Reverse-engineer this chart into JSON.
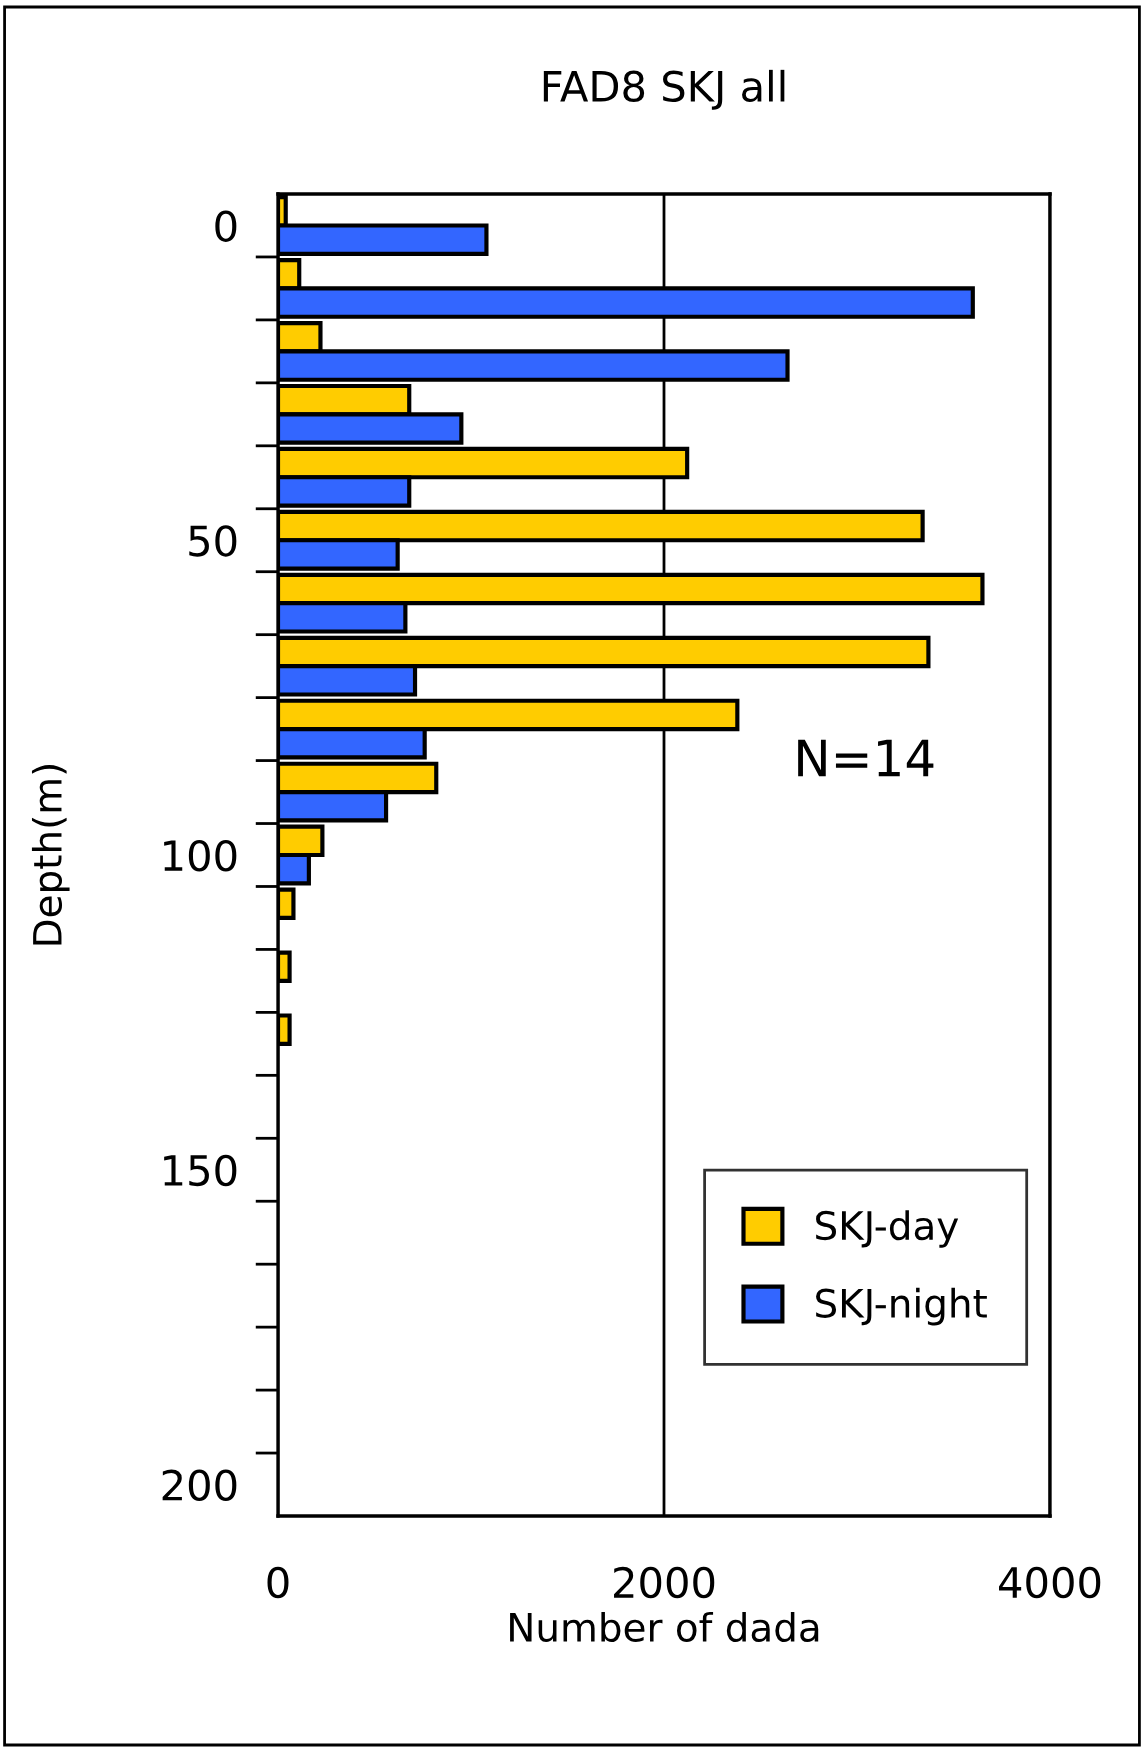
{
  "chart_data": {
    "type": "bar",
    "orientation": "horizontal",
    "title": "FAD8 SKJ all",
    "xlabel": "Number of dada",
    "ylabel": "Depth(m)",
    "categories": [
      "0",
      null,
      null,
      null,
      null,
      "50",
      null,
      null,
      null,
      null,
      "100",
      null,
      null,
      null,
      null,
      "150",
      null,
      null,
      null,
      null,
      "200"
    ],
    "series": [
      {
        "name": "SKJ-day",
        "color": "#ffcc00",
        "values": [
          40,
          110,
          220,
          680,
          2120,
          3340,
          3650,
          3370,
          2380,
          820,
          230,
          80,
          60,
          60,
          null,
          null,
          null,
          null,
          null,
          null,
          null
        ]
      },
      {
        "name": "SKJ-night",
        "color": "#3366ff",
        "values": [
          1080,
          3600,
          2640,
          950,
          680,
          620,
          660,
          710,
          760,
          560,
          160,
          null,
          null,
          null,
          null,
          null,
          null,
          null,
          null,
          null,
          null
        ]
      }
    ],
    "xlim": [
      0,
      4000
    ],
    "xticks": [
      0,
      2000,
      4000
    ],
    "grid": "x",
    "legend": "bottom right",
    "annotations": [
      "N=14"
    ]
  }
}
